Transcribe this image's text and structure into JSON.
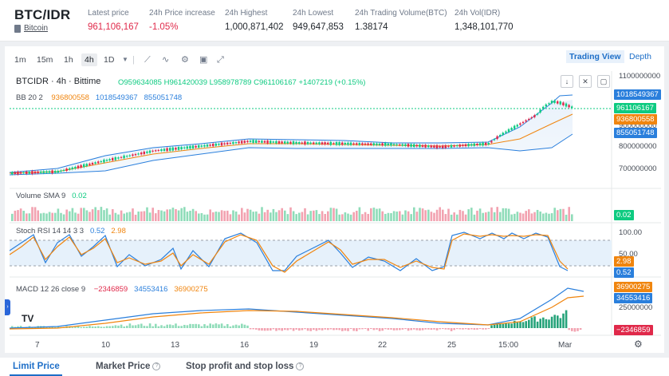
{
  "header": {
    "pair": "BTC/IDR",
    "coin_link": "Bitcoin",
    "stats": [
      {
        "label": "Latest price",
        "value": "961,106,167",
        "color": "#e0294a"
      },
      {
        "label": "24h Price increase",
        "value": "-1.05%",
        "color": "#e0294a"
      },
      {
        "label": "24h Highest",
        "value": "1,000,871,402",
        "color": "#1e2329"
      },
      {
        "label": "24h Lowest",
        "value": "949,647,853",
        "color": "#1e2329"
      },
      {
        "label": "24h Trading Volume(BTC)",
        "value": "1.38174",
        "color": "#1e2329"
      },
      {
        "label": "24h Vol(IDR)",
        "value": "1,348,101,770",
        "color": "#1e2329"
      }
    ]
  },
  "toolbar": {
    "intervals": [
      "1m",
      "15m",
      "1h",
      "4h",
      "1D"
    ],
    "active_interval": "4h",
    "right_tabs": [
      "Trading View",
      "Depth"
    ],
    "active_tab": "Trading View",
    "tool_icons": [
      "chevron-down-icon",
      "draw-line-icon",
      "indicator-icon",
      "settings-gear-icon",
      "save-icon",
      "fullscreen-icon"
    ]
  },
  "legend": {
    "symbol": "BTCIDR · 4h · Bittime",
    "ohlc": "O959634085 H961420039 L958978789 C961106167 +1407219 (+0.15%)",
    "bb_name": "BB 20 2",
    "bb_v1": "936800558",
    "bb_v2": "1018549367",
    "bb_v3": "855051748",
    "vol_name": "Volume SMA 9",
    "vol_value": "0.02",
    "stoch_name": "Stoch RSI 14 14 3 3",
    "stoch_k": "0.52",
    "stoch_d": "2.98",
    "macd_name": "MACD 12 26 close 9",
    "macd_hist": "−2346859",
    "macd_line": "34553416",
    "macd_signal": "36900275"
  },
  "price_axis": {
    "ticks": [
      "1100000000",
      "900000000",
      "800000000",
      "700000000"
    ],
    "tags": [
      {
        "value": "1018549367",
        "color": "#2a7fdc"
      },
      {
        "value": "961106167",
        "color": "#0ecb81"
      },
      {
        "value": "936800558",
        "color": "#f0850e"
      },
      {
        "value": "855051748",
        "color": "#2a7fdc"
      }
    ]
  },
  "volume_axis": {
    "tag": "0.02",
    "color": "#0ecb81"
  },
  "stoch_axis": {
    "ticks": [
      "100.00",
      "50.00",
      "0.00"
    ],
    "tag_d": "2.98",
    "tag_k": "0.52"
  },
  "macd_axis": {
    "tick": "25000000",
    "tags": [
      {
        "value": "36900275",
        "color": "#f0850e"
      },
      {
        "value": "34553416",
        "color": "#2a7fdc"
      },
      {
        "value": "−2346859",
        "color": "#e0294a"
      }
    ]
  },
  "x_axis": [
    "7",
    "10",
    "13",
    "16",
    "19",
    "22",
    "25",
    "15:00",
    "Mar"
  ],
  "order_tabs": [
    "Limit Price",
    "Market Price",
    "Stop profit and stop loss"
  ],
  "active_order_tab": "Limit Price",
  "colors": {
    "up": "#0ecb81",
    "down": "#e0294a",
    "bb_mid": "#f0850e",
    "bb_band": "#2a7fdc",
    "accent": "#1e6fc8"
  }
}
